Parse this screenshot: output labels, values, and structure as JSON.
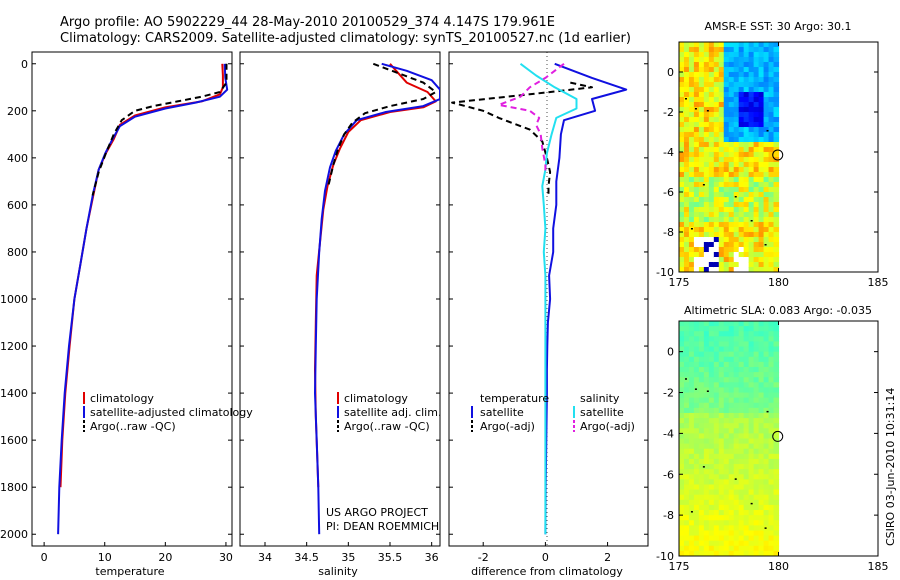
{
  "header": {
    "line1": "Argo profile: AO 5902229_44 28-May-2010 20100529_374 4.147S 179.961E",
    "line2": "Climatology: CARS2009. Satellite-adjusted climatology: synTS_20100527.nc (1d earlier)"
  },
  "credit": {
    "line1": "US ARGO PROJECT",
    "line2": "PI: DEAN ROEMMICH"
  },
  "stamp": "CSIRO 03-Jun-2010 10:31:14",
  "colors": {
    "climatology": "#e00000",
    "satellite": "#1010e0",
    "argo": "#000000",
    "sat_salinity": "#22e0f0",
    "argo_salinity": "#e020e0"
  },
  "chart_data": [
    {
      "type": "line",
      "id": "temperature",
      "xlabel": "temperature",
      "ylabel": "",
      "xlim": [
        -2,
        31
      ],
      "ylim": [
        2050,
        -50
      ],
      "xticks": [
        0,
        10,
        20,
        30
      ],
      "yticks": [
        0,
        200,
        400,
        600,
        800,
        1000,
        1200,
        1400,
        1600,
        1800,
        2000
      ],
      "legend": {
        "position": "lower-center",
        "entries": [
          "climatology",
          "satellite-adjusted climatology",
          "Argo(..raw -QC)"
        ]
      },
      "series": [
        {
          "name": "climatology",
          "color": "#e00000",
          "dashed": false,
          "points": [
            [
              29.4,
              0
            ],
            [
              29.5,
              50
            ],
            [
              29.5,
              100
            ],
            [
              29,
              130
            ],
            [
              26,
              160
            ],
            [
              20,
              185
            ],
            [
              15,
              220
            ],
            [
              12.5,
              260
            ],
            [
              11.5,
              320
            ],
            [
              10.2,
              380
            ],
            [
              9,
              450
            ],
            [
              8.2,
              550
            ],
            [
              7,
              700
            ],
            [
              6,
              850
            ],
            [
              5,
              1000
            ],
            [
              4.2,
              1200
            ],
            [
              3.5,
              1400
            ],
            [
              3,
              1600
            ],
            [
              2.7,
              1800
            ]
          ]
        },
        {
          "name": "satellite-adjusted climatology",
          "color": "#1010e0",
          "dashed": false,
          "points": [
            [
              29.8,
              0
            ],
            [
              29.9,
              60
            ],
            [
              30.2,
              110
            ],
            [
              29,
              140
            ],
            [
              25,
              165
            ],
            [
              20,
              190
            ],
            [
              15,
              225
            ],
            [
              12.5,
              265
            ],
            [
              11.3,
              320
            ],
            [
              10.1,
              380
            ],
            [
              9,
              450
            ],
            [
              8.1,
              550
            ],
            [
              7,
              700
            ],
            [
              6,
              850
            ],
            [
              5,
              1000
            ],
            [
              4.1,
              1200
            ],
            [
              3.4,
              1400
            ],
            [
              2.9,
              1600
            ],
            [
              2.5,
              1800
            ],
            [
              2.3,
              2000
            ]
          ]
        },
        {
          "name": "Argo(..raw -QC)",
          "color": "#000000",
          "dashed": true,
          "points": [
            [
              30.1,
              0
            ],
            [
              30.1,
              80
            ],
            [
              29,
              120
            ],
            [
              26,
              140
            ],
            [
              22,
              160
            ],
            [
              18,
              180
            ],
            [
              15,
              200
            ],
            [
              12.8,
              240
            ],
            [
              11.5,
              300
            ],
            [
              10.2,
              380
            ],
            [
              9,
              460
            ],
            [
              8,
              560
            ]
          ]
        }
      ]
    },
    {
      "type": "line",
      "id": "salinity",
      "xlabel": "salinity",
      "ylabel": "",
      "xlim": [
        33.7,
        36.1
      ],
      "ylim": [
        2050,
        -50
      ],
      "xticks": [
        34,
        34.5,
        35,
        35.5,
        36
      ],
      "xtick_labels": [
        "34",
        "34.5",
        "35",
        "35.5",
        "36"
      ],
      "legend": {
        "position": "lower-center",
        "entries": [
          "climatology",
          "satellite adj. clim.",
          "Argo(..raw -QC)"
        ]
      },
      "series": [
        {
          "name": "climatology",
          "color": "#e00000",
          "dashed": false,
          "points": [
            [
              35.5,
              0
            ],
            [
              35.6,
              40
            ],
            [
              35.7,
              80
            ],
            [
              35.95,
              120
            ],
            [
              36.05,
              160
            ],
            [
              35.9,
              185
            ],
            [
              35.5,
              205
            ],
            [
              35.15,
              240
            ],
            [
              35,
              290
            ],
            [
              34.9,
              360
            ],
            [
              34.82,
              430
            ],
            [
              34.75,
              520
            ],
            [
              34.7,
              620
            ],
            [
              34.66,
              760
            ],
            [
              34.62,
              900
            ],
            [
              34.61,
              1100
            ],
            [
              34.6,
              1300
            ],
            [
              34.61,
              1500
            ],
            [
              34.63,
              1700
            ],
            [
              34.64,
              1800
            ]
          ]
        },
        {
          "name": "satellite adj. clim.",
          "color": "#1010e0",
          "dashed": false,
          "points": [
            [
              35.4,
              0
            ],
            [
              35.7,
              30
            ],
            [
              36.0,
              70
            ],
            [
              36.1,
              110
            ],
            [
              36.1,
              150
            ],
            [
              35.9,
              180
            ],
            [
              35.45,
              205
            ],
            [
              35.1,
              240
            ],
            [
              34.95,
              300
            ],
            [
              34.85,
              370
            ],
            [
              34.78,
              440
            ],
            [
              34.72,
              540
            ],
            [
              34.68,
              660
            ],
            [
              34.65,
              800
            ],
            [
              34.62,
              1000
            ],
            [
              34.61,
              1200
            ],
            [
              34.6,
              1400
            ],
            [
              34.62,
              1600
            ],
            [
              34.64,
              1800
            ],
            [
              34.65,
              2000
            ]
          ]
        },
        {
          "name": "Argo(..raw -QC)",
          "color": "#000000",
          "dashed": true,
          "points": [
            [
              35.3,
              0
            ],
            [
              35.6,
              40
            ],
            [
              35.9,
              80
            ],
            [
              36.05,
              120
            ],
            [
              35.9,
              150
            ],
            [
              35.5,
              180
            ],
            [
              35.2,
              210
            ],
            [
              35.05,
              250
            ],
            [
              34.95,
              300
            ],
            [
              34.88,
              360
            ],
            [
              34.82,
              430
            ],
            [
              34.76,
              520
            ]
          ]
        }
      ]
    },
    {
      "type": "line",
      "id": "difference",
      "xlabel": "difference from climatology",
      "ylabel": "",
      "xlim": [
        -3.1,
        3.3
      ],
      "ylim": [
        2050,
        -50
      ],
      "xticks": [
        -2,
        0,
        2
      ],
      "legend": {
        "position": "lower-center",
        "temperature_title": "temperature",
        "salinity_title": "salinity",
        "temperature_entries": [
          "satellite",
          "Argo(-adj)"
        ],
        "salinity_entries": [
          "satellite",
          "Argo(-adj)"
        ]
      },
      "series": [
        {
          "name": "temperature satellite",
          "color": "#1010e0",
          "dashed": false,
          "points": [
            [
              0.3,
              0
            ],
            [
              1.5,
              60
            ],
            [
              2.6,
              110
            ],
            [
              1.5,
              150
            ],
            [
              1.6,
              200
            ],
            [
              0.6,
              240
            ],
            [
              0.5,
              300
            ],
            [
              0.45,
              400
            ],
            [
              0.35,
              500
            ],
            [
              0.35,
              600
            ],
            [
              0.25,
              700
            ],
            [
              0.25,
              800
            ],
            [
              0.12,
              900
            ],
            [
              0.15,
              1000
            ],
            [
              0.08,
              1100
            ],
            [
              0.06,
              1200
            ],
            [
              0.05,
              1300
            ],
            [
              0.05,
              1400
            ],
            [
              0.04,
              1500
            ],
            [
              0.03,
              1600
            ],
            [
              0.02,
              1700
            ],
            [
              0.01,
              1800
            ],
            [
              0,
              2000
            ]
          ]
        },
        {
          "name": "temperature Argo(-adj)",
          "color": "#000000",
          "dashed": true,
          "points": [
            [
              0.8,
              80
            ],
            [
              1.5,
              100
            ],
            [
              -0.5,
              130
            ],
            [
              -3.0,
              165
            ],
            [
              -2.0,
              200
            ],
            [
              -1.5,
              230
            ],
            [
              -0.5,
              280
            ],
            [
              -0.1,
              330
            ],
            [
              0.05,
              400
            ],
            [
              0.15,
              460
            ],
            [
              0.1,
              520
            ],
            [
              0.1,
              560
            ]
          ]
        },
        {
          "name": "salinity satellite",
          "color": "#22e0f0",
          "dashed": false,
          "points": [
            [
              -0.8,
              0
            ],
            [
              -0.3,
              50
            ],
            [
              0.3,
              100
            ],
            [
              1.0,
              150
            ],
            [
              1.0,
              190
            ],
            [
              0.35,
              230
            ],
            [
              0.2,
              300
            ],
            [
              0.05,
              380
            ],
            [
              0,
              450
            ],
            [
              -0.1,
              520
            ],
            [
              -0.05,
              600
            ],
            [
              0,
              700
            ],
            [
              -0.05,
              800
            ],
            [
              0,
              900
            ],
            [
              0,
              1100
            ],
            [
              0,
              1300
            ],
            [
              0,
              1500
            ],
            [
              0,
              1700
            ],
            [
              0,
              2000
            ]
          ]
        },
        {
          "name": "salinity Argo(-adj)",
          "color": "#e020e0",
          "dashed": true,
          "points": [
            [
              0.6,
              0
            ],
            [
              0,
              60
            ],
            [
              -0.5,
              100
            ],
            [
              -0.8,
              140
            ],
            [
              -1.5,
              175
            ],
            [
              -0.5,
              200
            ],
            [
              -0.2,
              230
            ],
            [
              -0.3,
              260
            ],
            [
              -0.15,
              300
            ],
            [
              -0.1,
              360
            ],
            [
              0,
              430
            ],
            [
              0,
              470
            ]
          ]
        }
      ]
    },
    {
      "type": "heatmap",
      "id": "sst-map",
      "title": "AMSR-E SST: 30 Argo: 30.1",
      "xlim": [
        175,
        185
      ],
      "ylim": [
        -10,
        1.5
      ],
      "xticks": [
        175,
        180,
        185
      ],
      "yticks": [
        0,
        -2,
        -4,
        -6,
        -8,
        -10
      ],
      "marker": [
        179.961,
        -4.147
      ]
    },
    {
      "type": "heatmap",
      "id": "sla-map",
      "title": "Altimetric SLA: 0.083 Argo: -0.035",
      "xlim": [
        175,
        185
      ],
      "ylim": [
        -10,
        1.5
      ],
      "xticks": [
        175,
        180,
        185
      ],
      "yticks": [
        0,
        -2,
        -4,
        -6,
        -8,
        -10
      ],
      "marker": [
        179.961,
        -4.147
      ]
    }
  ]
}
